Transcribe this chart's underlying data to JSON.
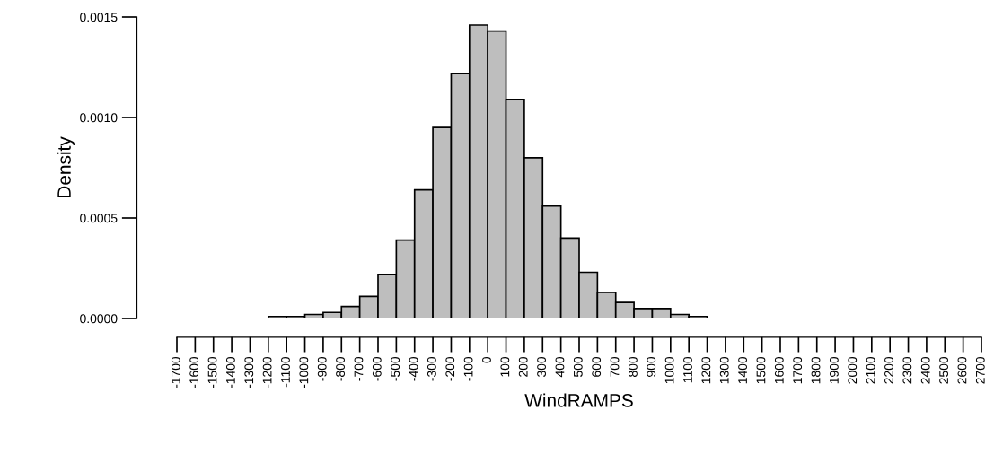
{
  "chart_data": {
    "type": "histogram",
    "xlabel": "WindRAMPS",
    "ylabel": "Density",
    "bins": [
      -1700,
      -1600,
      -1500,
      -1400,
      -1300,
      -1200,
      -1100,
      -1000,
      -900,
      -800,
      -700,
      -600,
      -500,
      -400,
      -300,
      -200,
      -100,
      0,
      100,
      200,
      300,
      400,
      500,
      600,
      700,
      800,
      900,
      1000,
      1100,
      1200,
      1300,
      1400,
      1500,
      1600,
      1700,
      1800,
      1900,
      2000,
      2100,
      2200,
      2300,
      2400,
      2500,
      2600,
      2700
    ],
    "values": [
      0,
      0,
      0,
      0,
      0,
      1e-05,
      1e-05,
      2e-05,
      3e-05,
      6e-05,
      0.00011,
      0.00022,
      0.00039,
      0.00064,
      0.00095,
      0.00122,
      0.00146,
      0.00143,
      0.00109,
      0.0008,
      0.00056,
      0.0004,
      0.00023,
      0.00013,
      8e-05,
      5e-05,
      5e-05,
      2e-05,
      1e-05,
      0,
      0,
      0,
      0,
      0,
      0,
      0,
      0,
      0,
      0,
      0,
      0,
      0,
      0,
      0
    ],
    "color": "#bebebe",
    "xlim": [
      -1700,
      2700
    ],
    "xticks": [
      -1700,
      -1600,
      -1500,
      -1400,
      -1300,
      -1200,
      -1100,
      -1000,
      -900,
      -800,
      -700,
      -600,
      -500,
      -400,
      -300,
      -200,
      -100,
      0,
      100,
      200,
      300,
      400,
      500,
      600,
      700,
      800,
      900,
      1000,
      1100,
      1200,
      1300,
      1400,
      1500,
      1600,
      1700,
      1800,
      1900,
      2000,
      2100,
      2200,
      2300,
      2400,
      2500,
      2600,
      2700
    ],
    "ylim": [
      0,
      0.0015
    ],
    "yticks": [
      {
        "value": 0,
        "label": "0.0000"
      },
      {
        "value": 0.0005,
        "label": "0.0005"
      },
      {
        "value": 0.001,
        "label": "0.0010"
      },
      {
        "value": 0.0015,
        "label": "0.0015"
      }
    ],
    "grid": false
  }
}
